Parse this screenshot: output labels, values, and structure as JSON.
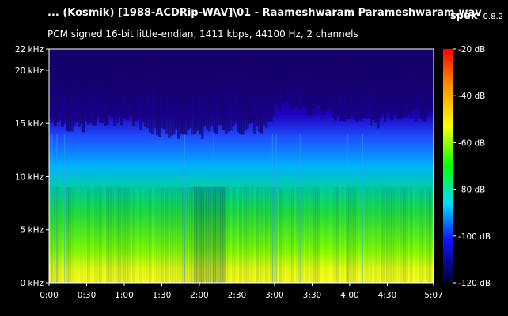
{
  "header": {
    "title": "... (Kosmik) [1988-ACDRip-WAV]\\01 - Raameshwaram Parameshwaram.wav",
    "app_name": "spek",
    "app_version": "0.8.2",
    "subtitle": "PCM signed 16-bit little-endian, 1411 kbps, 44100 Hz, 2 channels"
  },
  "chart_data": {
    "type": "heatmap",
    "title": "",
    "x_ticks": [
      "0:00",
      "0:30",
      "1:00",
      "1:30",
      "2:00",
      "2:30",
      "3:00",
      "3:30",
      "4:00",
      "4:30",
      "5:07"
    ],
    "x_tick_seconds": [
      0,
      30,
      60,
      90,
      120,
      150,
      180,
      210,
      240,
      270,
      307
    ],
    "xlim_seconds": [
      0,
      307
    ],
    "y_ticks": [
      "0 kHz",
      "5 kHz",
      "10 kHz",
      "15 kHz",
      "20 kHz",
      "22 kHz"
    ],
    "y_tick_khz": [
      0,
      5,
      10,
      15,
      20,
      22
    ],
    "ylim_khz": [
      0,
      22
    ],
    "colorbar": {
      "labels": [
        "-20 dB",
        "-40 dB",
        "-60 dB",
        "-80 dB",
        "-100 dB",
        "-120 dB"
      ],
      "db_values": [
        -20,
        -40,
        -60,
        -80,
        -100,
        -120
      ],
      "range_db": [
        -120,
        -20
      ],
      "colors": [
        "#ff0000",
        "#ff8c00",
        "#ffff00",
        "#00ff00",
        "#00ffff",
        "#0000ff",
        "#000030"
      ]
    },
    "energy_profile": {
      "cutoff_khz": [
        {
          "t": 0,
          "khz": 15.5
        },
        {
          "t": 20,
          "khz": 14.5
        },
        {
          "t": 40,
          "khz": 15
        },
        {
          "t": 60,
          "khz": 15.5
        },
        {
          "t": 80,
          "khz": 14.5
        },
        {
          "t": 100,
          "khz": 14
        },
        {
          "t": 120,
          "khz": 14
        },
        {
          "t": 140,
          "khz": 14.5
        },
        {
          "t": 160,
          "khz": 14.5
        },
        {
          "t": 175,
          "khz": 14.5
        },
        {
          "t": 180,
          "khz": 16.5
        },
        {
          "t": 200,
          "khz": 16.5
        },
        {
          "t": 220,
          "khz": 16
        },
        {
          "t": 240,
          "khz": 15.5
        },
        {
          "t": 260,
          "khz": 15
        },
        {
          "t": 280,
          "khz": 16
        },
        {
          "t": 307,
          "khz": 15.5
        }
      ]
    }
  }
}
